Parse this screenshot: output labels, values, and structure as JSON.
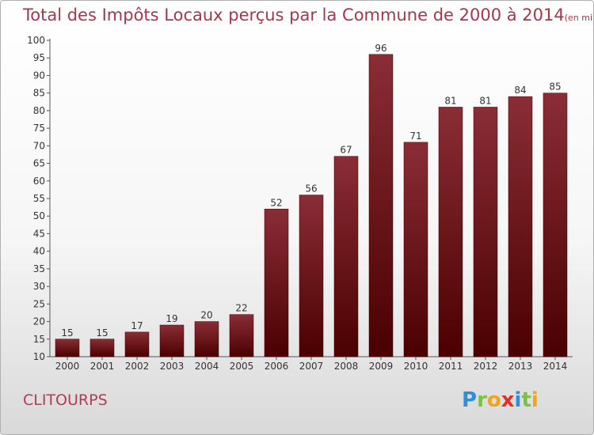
{
  "header": {
    "title": "Total des Impôts Locaux perçus par la Commune de 2000 à 2014",
    "unit": "(en milliers d'€)"
  },
  "footer": {
    "commune": "CLITOURPS",
    "brand_letters": [
      "P",
      "r",
      "o",
      "x",
      "i",
      "t",
      "i"
    ]
  },
  "colors": {
    "title": "#a8354a",
    "bar_top": "#8a2d36",
    "bar_bottom": "#4a0000"
  },
  "chart_data": {
    "type": "bar",
    "title": "Total des Impôts Locaux perçus par la Commune de 2000 à 2014",
    "xlabel": "",
    "ylabel": "",
    "categories": [
      "2000",
      "2001",
      "2002",
      "2003",
      "2004",
      "2005",
      "2006",
      "2007",
      "2008",
      "2009",
      "2010",
      "2011",
      "2012",
      "2013",
      "2014"
    ],
    "values": [
      15,
      15,
      17,
      19,
      20,
      22,
      52,
      56,
      67,
      96,
      71,
      81,
      81,
      84,
      85
    ],
    "ylim": [
      10,
      100
    ],
    "yticks": [
      "10",
      "15",
      "20",
      "25",
      "30",
      "35",
      "40",
      "45",
      "50",
      "55",
      "60",
      "65",
      "70",
      "75",
      "80",
      "85",
      "90",
      "95",
      "100"
    ],
    "grid": false
  }
}
